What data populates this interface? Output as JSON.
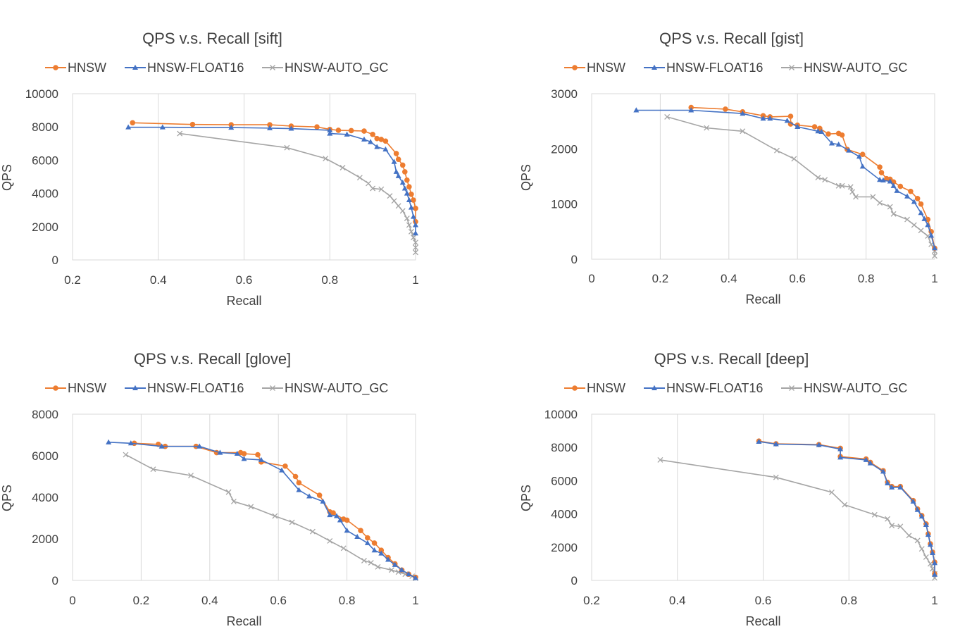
{
  "chart_data": [
    {
      "type": "line",
      "title": "QPS v.s. Recall [sift]",
      "xlabel": "Recall",
      "ylabel": "QPS",
      "xlim": [
        0.2,
        1
      ],
      "ylim": [
        0,
        10000
      ],
      "xticks": [
        0.2,
        0.4,
        0.6,
        0.8,
        1
      ],
      "yticks": [
        0,
        2000,
        4000,
        6000,
        8000,
        10000
      ],
      "xtick_labels": [
        "0.2",
        "0.4",
        "0.6",
        "0.8",
        "1"
      ],
      "ytick_labels": [
        "0",
        "2000",
        "4000",
        "6000",
        "8000",
        "10000"
      ],
      "grid": "vertical",
      "legend": "top",
      "series": [
        {
          "name": "HNSW",
          "color": "#ed7d31",
          "marker": "circle",
          "x": [
            0.34,
            0.48,
            0.57,
            0.66,
            0.71,
            0.77,
            0.8,
            0.82,
            0.85,
            0.88,
            0.9,
            0.91,
            0.92,
            0.93,
            0.955,
            0.96,
            0.97,
            0.975,
            0.98,
            0.985,
            0.99,
            0.995,
            1.0,
            1.0
          ],
          "y": [
            8250,
            8150,
            8130,
            8130,
            8050,
            8000,
            7850,
            7800,
            7780,
            7750,
            7550,
            7300,
            7250,
            7150,
            6400,
            6050,
            5700,
            5300,
            4800,
            4400,
            3950,
            3600,
            3100,
            2300
          ]
        },
        {
          "name": "HNSW-FLOAT16",
          "color": "#4472c4",
          "marker": "triangle",
          "x": [
            0.33,
            0.41,
            0.57,
            0.66,
            0.71,
            0.8,
            0.8,
            0.84,
            0.88,
            0.895,
            0.91,
            0.93,
            0.95,
            0.955,
            0.96,
            0.97,
            0.975,
            0.98,
            0.985,
            0.99,
            0.995,
            1.0,
            1.0
          ],
          "y": [
            7980,
            7980,
            7960,
            7930,
            7900,
            7800,
            7600,
            7550,
            7250,
            7100,
            6800,
            6650,
            5900,
            5300,
            5050,
            4650,
            4300,
            4000,
            3600,
            3150,
            2600,
            2100,
            1600
          ]
        },
        {
          "name": "HNSW-AUTO_GC",
          "color": "#a5a5a5",
          "marker": "cross",
          "x": [
            0.45,
            0.7,
            0.79,
            0.83,
            0.87,
            0.89,
            0.9,
            0.92,
            0.94,
            0.95,
            0.96,
            0.97,
            0.98,
            0.985,
            0.99,
            0.995,
            1.0,
            1.0,
            1.0
          ],
          "y": [
            7600,
            6750,
            6100,
            5550,
            4950,
            4600,
            4300,
            4250,
            3850,
            3550,
            3250,
            2950,
            2500,
            2100,
            1700,
            1350,
            1050,
            750,
            450
          ]
        }
      ]
    },
    {
      "type": "line",
      "title": "QPS v.s. Recall [gist]",
      "xlabel": "Recall",
      "ylabel": "QPS",
      "xlim": [
        0,
        1
      ],
      "ylim": [
        0,
        3000
      ],
      "xticks": [
        0,
        0.2,
        0.4,
        0.6,
        0.8,
        1
      ],
      "yticks": [
        0,
        1000,
        2000,
        3000
      ],
      "xtick_labels": [
        "0",
        "0.2",
        "0.4",
        "0.6",
        "0.8",
        "1"
      ],
      "ytick_labels": [
        "0",
        "1000",
        "2000",
        "3000"
      ],
      "grid": "vertical",
      "legend": "top",
      "series": [
        {
          "name": "HNSW",
          "color": "#ed7d31",
          "marker": "circle",
          "x": [
            0.29,
            0.39,
            0.44,
            0.5,
            0.52,
            0.58,
            0.58,
            0.6,
            0.65,
            0.665,
            0.69,
            0.72,
            0.73,
            0.745,
            0.79,
            0.84,
            0.845,
            0.86,
            0.87,
            0.88,
            0.9,
            0.93,
            0.95,
            0.96,
            0.98,
            0.99,
            1.0
          ],
          "y": [
            2750,
            2720,
            2670,
            2600,
            2580,
            2590,
            2450,
            2430,
            2400,
            2370,
            2270,
            2280,
            2250,
            1990,
            1900,
            1670,
            1570,
            1460,
            1450,
            1400,
            1320,
            1230,
            1100,
            1000,
            720,
            500,
            200
          ]
        },
        {
          "name": "HNSW-FLOAT16",
          "color": "#4472c4",
          "marker": "triangle",
          "x": [
            0.13,
            0.29,
            0.44,
            0.5,
            0.52,
            0.57,
            0.6,
            0.66,
            0.67,
            0.7,
            0.72,
            0.75,
            0.78,
            0.79,
            0.84,
            0.85,
            0.87,
            0.88,
            0.89,
            0.92,
            0.94,
            0.96,
            0.97,
            0.98,
            0.99,
            1.0
          ],
          "y": [
            2700,
            2700,
            2640,
            2550,
            2550,
            2510,
            2400,
            2320,
            2310,
            2100,
            2080,
            1970,
            1860,
            1680,
            1440,
            1430,
            1410,
            1330,
            1240,
            1140,
            1040,
            840,
            730,
            620,
            430,
            200
          ]
        },
        {
          "name": "HNSW-AUTO_GC",
          "color": "#a5a5a5",
          "marker": "cross",
          "x": [
            0.22,
            0.335,
            0.44,
            0.54,
            0.59,
            0.66,
            0.68,
            0.72,
            0.73,
            0.755,
            0.76,
            0.77,
            0.82,
            0.84,
            0.87,
            0.88,
            0.92,
            0.94,
            0.96,
            0.98,
            0.99,
            1.0,
            1.0
          ],
          "y": [
            2580,
            2380,
            2320,
            1970,
            1820,
            1480,
            1440,
            1330,
            1330,
            1310,
            1220,
            1130,
            1130,
            1020,
            950,
            820,
            720,
            620,
            520,
            420,
            270,
            150,
            60
          ]
        }
      ]
    },
    {
      "type": "line",
      "title": "QPS v.s. Recall [glove]",
      "xlabel": "Recall",
      "ylabel": "QPS",
      "xlim": [
        0,
        1
      ],
      "ylim": [
        0,
        8000
      ],
      "xticks": [
        0,
        0.2,
        0.4,
        0.6,
        0.8,
        1
      ],
      "yticks": [
        0,
        2000,
        4000,
        6000,
        8000
      ],
      "xtick_labels": [
        "0",
        "0.2",
        "0.4",
        "0.6",
        "0.8",
        "1"
      ],
      "ytick_labels": [
        "0",
        "2000",
        "4000",
        "6000",
        "8000"
      ],
      "grid": "vertical",
      "legend": "top",
      "series": [
        {
          "name": "HNSW",
          "color": "#ed7d31",
          "marker": "circle",
          "x": [
            0.18,
            0.25,
            0.27,
            0.36,
            0.42,
            0.49,
            0.5,
            0.54,
            0.55,
            0.62,
            0.65,
            0.66,
            0.72,
            0.75,
            0.76,
            0.79,
            0.8,
            0.84,
            0.86,
            0.88,
            0.9,
            0.92,
            0.94,
            0.96,
            0.98,
            1.0
          ],
          "y": [
            6600,
            6550,
            6450,
            6450,
            6150,
            6150,
            6100,
            6050,
            5700,
            5500,
            5000,
            4700,
            4100,
            3300,
            3250,
            2950,
            2900,
            2400,
            2050,
            1800,
            1450,
            1100,
            800,
            500,
            300,
            150
          ]
        },
        {
          "name": "HNSW-FLOAT16",
          "color": "#4472c4",
          "marker": "triangle",
          "x": [
            0.105,
            0.17,
            0.26,
            0.37,
            0.43,
            0.48,
            0.5,
            0.55,
            0.61,
            0.66,
            0.69,
            0.73,
            0.75,
            0.77,
            0.78,
            0.8,
            0.83,
            0.86,
            0.88,
            0.9,
            0.92,
            0.94,
            0.96,
            0.98,
            1.0
          ],
          "y": [
            6650,
            6600,
            6450,
            6450,
            6150,
            6100,
            5850,
            5800,
            5300,
            4350,
            4050,
            3800,
            3150,
            3100,
            2900,
            2400,
            2100,
            1800,
            1450,
            1300,
            1000,
            750,
            500,
            300,
            120
          ]
        },
        {
          "name": "HNSW-AUTO_GC",
          "color": "#a5a5a5",
          "marker": "cross",
          "x": [
            0.155,
            0.235,
            0.345,
            0.455,
            0.47,
            0.52,
            0.59,
            0.64,
            0.7,
            0.75,
            0.79,
            0.85,
            0.87,
            0.89,
            0.93,
            0.95,
            0.97,
            0.99,
            1.0
          ],
          "y": [
            6050,
            5350,
            5050,
            4250,
            3800,
            3550,
            3100,
            2800,
            2350,
            1900,
            1550,
            950,
            850,
            650,
            500,
            400,
            300,
            200,
            100
          ]
        }
      ]
    },
    {
      "type": "line",
      "title": "QPS v.s. Recall [deep]",
      "xlabel": "Recall",
      "ylabel": "QPS",
      "xlim": [
        0.2,
        1
      ],
      "ylim": [
        0,
        10000
      ],
      "xticks": [
        0.2,
        0.4,
        0.6,
        0.8,
        1
      ],
      "yticks": [
        0,
        2000,
        4000,
        6000,
        8000,
        10000
      ],
      "xtick_labels": [
        "0.2",
        "0.4",
        "0.6",
        "0.8",
        "1"
      ],
      "ytick_labels": [
        "0",
        "2000",
        "4000",
        "6000",
        "8000",
        "10000"
      ],
      "grid": "vertical",
      "legend": "top",
      "series": [
        {
          "name": "HNSW",
          "color": "#ed7d31",
          "marker": "circle",
          "x": [
            0.59,
            0.63,
            0.73,
            0.78,
            0.78,
            0.84,
            0.85,
            0.88,
            0.89,
            0.9,
            0.92,
            0.95,
            0.96,
            0.97,
            0.98,
            0.985,
            0.99,
            0.995,
            1.0,
            1.0
          ],
          "y": [
            8380,
            8220,
            8170,
            7950,
            7450,
            7300,
            7100,
            6600,
            5900,
            5650,
            5650,
            4800,
            4300,
            3900,
            3400,
            2800,
            2200,
            1700,
            1100,
            400
          ]
        },
        {
          "name": "HNSW-FLOAT16",
          "color": "#4472c4",
          "marker": "triangle",
          "x": [
            0.59,
            0.63,
            0.73,
            0.78,
            0.78,
            0.84,
            0.85,
            0.88,
            0.89,
            0.9,
            0.92,
            0.95,
            0.96,
            0.97,
            0.98,
            0.985,
            0.99,
            0.995,
            1.0,
            1.0
          ],
          "y": [
            8350,
            8200,
            8150,
            7900,
            7400,
            7250,
            7050,
            6550,
            5850,
            5600,
            5600,
            4750,
            4250,
            3850,
            3350,
            2750,
            2150,
            1650,
            1050,
            350
          ]
        },
        {
          "name": "HNSW-AUTO_GC",
          "color": "#a5a5a5",
          "marker": "cross",
          "x": [
            0.36,
            0.63,
            0.76,
            0.79,
            0.86,
            0.89,
            0.9,
            0.92,
            0.94,
            0.96,
            0.97,
            0.98,
            0.99,
            0.995,
            1.0,
            1.0
          ],
          "y": [
            7250,
            6200,
            5300,
            4550,
            3950,
            3700,
            3300,
            3250,
            2700,
            2400,
            1900,
            1400,
            1000,
            700,
            400,
            150
          ]
        }
      ]
    }
  ]
}
